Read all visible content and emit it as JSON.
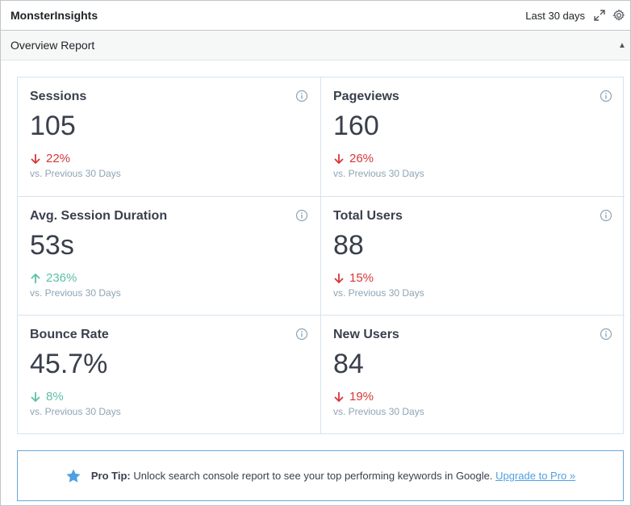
{
  "header": {
    "brand": "MonsterInsights",
    "period": "Last 30 days",
    "icons": [
      "expand-icon",
      "gear-icon"
    ]
  },
  "report": {
    "title": "Overview Report",
    "collapse_icon": "caret-up-icon"
  },
  "metrics": [
    {
      "title": "Sessions",
      "value": "105",
      "direction": "down",
      "delta": "22%",
      "compare": "vs. Previous 30 Days"
    },
    {
      "title": "Pageviews",
      "value": "160",
      "direction": "down",
      "delta": "26%",
      "compare": "vs. Previous 30 Days"
    },
    {
      "title": "Avg. Session Duration",
      "value": "53s",
      "direction": "up",
      "delta": "236%",
      "compare": "vs. Previous 30 Days"
    },
    {
      "title": "Total Users",
      "value": "88",
      "direction": "down",
      "delta": "15%",
      "compare": "vs. Previous 30 Days"
    },
    {
      "title": "Bounce Rate",
      "value": "45.7%",
      "direction": "down-good",
      "delta": "8%",
      "compare": "vs. Previous 30 Days"
    },
    {
      "title": "New Users",
      "value": "84",
      "direction": "down",
      "delta": "19%",
      "compare": "vs. Previous 30 Days"
    }
  ],
  "colors": {
    "negative": "#d73638",
    "positive": "#5cc0a5",
    "link": "#509fe2",
    "border": "#d6e2ed"
  },
  "protip": {
    "label": "Pro Tip:",
    "text": "Unlock search console report to see your top performing keywords in Google.",
    "link": "Upgrade to Pro »",
    "icon": "star-icon"
  }
}
